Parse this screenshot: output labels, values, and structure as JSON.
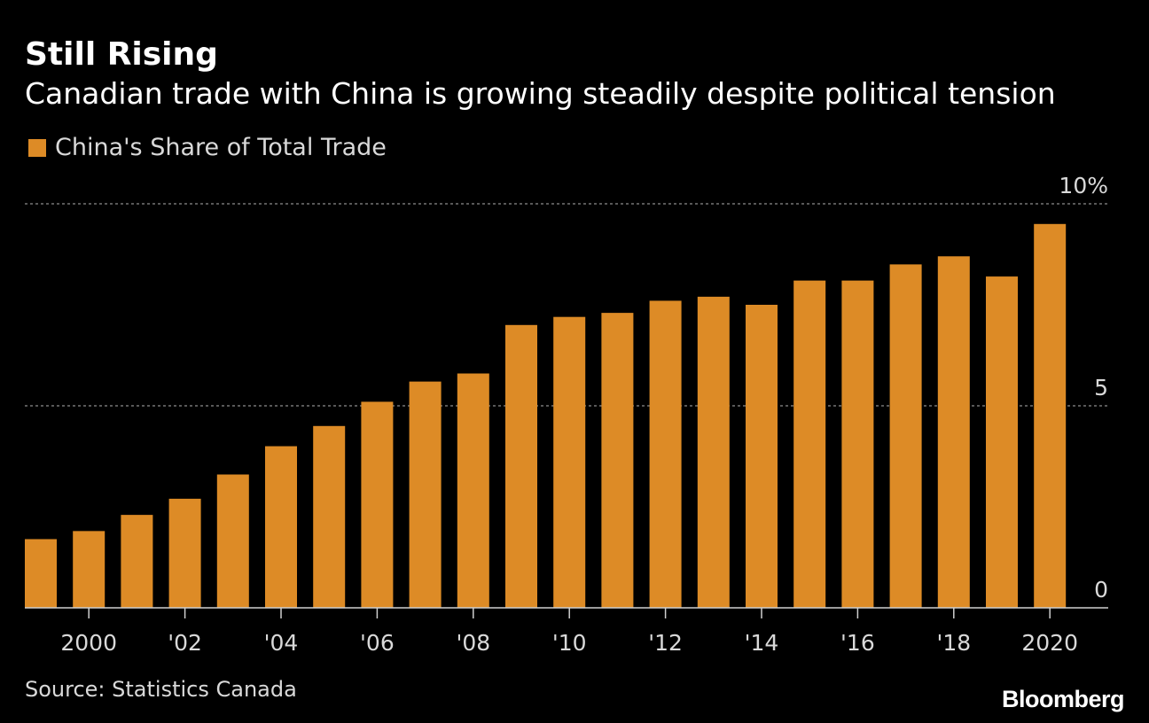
{
  "header": {
    "title": "Still Rising",
    "subtitle": "Canadian trade with China is growing steadily despite political tension"
  },
  "legend": {
    "label": "China's Share of Total Trade"
  },
  "footer": {
    "source": "Source: Statistics Canada",
    "brand": "Bloomberg"
  },
  "colors": {
    "background": "#000000",
    "bar": "#dd8b26",
    "grid": "#8c8c8c",
    "text": "#ffffff",
    "muted": "#d9d9d9"
  },
  "chart_data": {
    "type": "bar",
    "title": "Still Rising",
    "subtitle": "Canadian trade with China is growing steadily despite political tension",
    "series": [
      {
        "name": "China's Share of Total Trade",
        "values": [
          1.7,
          1.9,
          2.3,
          2.7,
          3.3,
          4.0,
          4.5,
          5.1,
          5.6,
          5.8,
          7.0,
          7.2,
          7.3,
          7.6,
          7.7,
          7.5,
          8.1,
          8.1,
          8.5,
          8.7,
          8.2,
          9.5
        ]
      }
    ],
    "categories": [
      1999,
      2000,
      2001,
      2002,
      2003,
      2004,
      2005,
      2006,
      2007,
      2008,
      2009,
      2010,
      2011,
      2012,
      2013,
      2014,
      2015,
      2016,
      2017,
      2018,
      2019,
      2020
    ],
    "x_ticks": [
      {
        "year": 2000,
        "label": "2000"
      },
      {
        "year": 2002,
        "label": "'02"
      },
      {
        "year": 2004,
        "label": "'04"
      },
      {
        "year": 2006,
        "label": "'06"
      },
      {
        "year": 2008,
        "label": "'08"
      },
      {
        "year": 2010,
        "label": "'10"
      },
      {
        "year": 2012,
        "label": "'12"
      },
      {
        "year": 2014,
        "label": "'14"
      },
      {
        "year": 2016,
        "label": "'16"
      },
      {
        "year": 2018,
        "label": "'18"
      },
      {
        "year": 2020,
        "label": "2020"
      }
    ],
    "y_ticks": [
      {
        "value": 0,
        "label": "0"
      },
      {
        "value": 5,
        "label": "5"
      },
      {
        "value": 10,
        "label": "10%"
      }
    ],
    "ylim": [
      0,
      10
    ],
    "xlabel": "",
    "ylabel": "",
    "grid": true,
    "legend_position": "top-left"
  }
}
